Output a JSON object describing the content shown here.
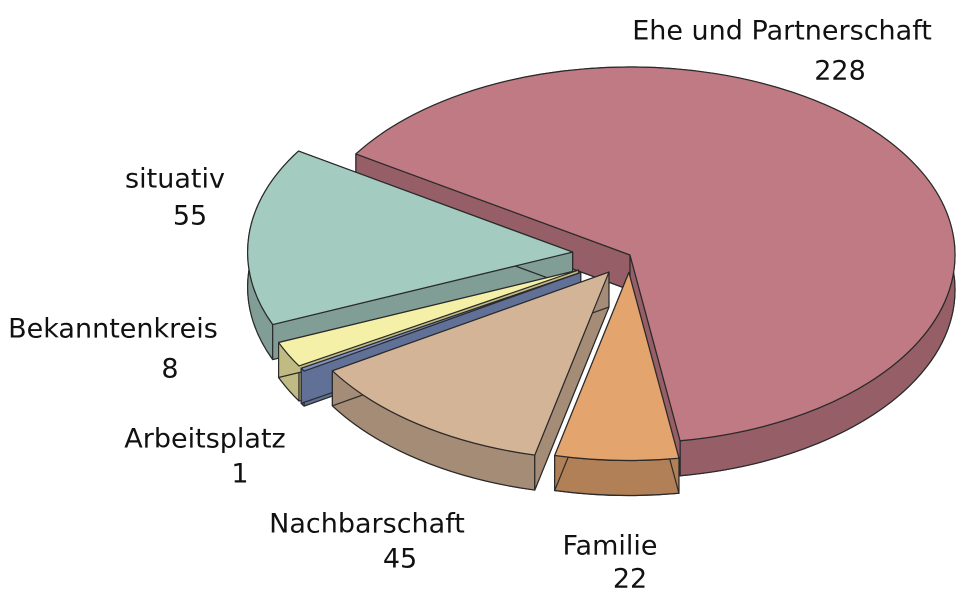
{
  "chart_data": {
    "type": "pie3d",
    "categories": [
      "Ehe und Partnerschaft",
      "Familie",
      "Nachbarschaft",
      "Arbeitsplatz",
      "Bekanntenkreis",
      "situativ"
    ],
    "values": [
      228,
      22,
      45,
      1,
      8,
      55
    ],
    "colors": [
      "#c07a84",
      "#e3a46e",
      "#d4b497",
      "#7b8fc0",
      "#f5f0a8",
      "#a4cbbf"
    ]
  }
}
